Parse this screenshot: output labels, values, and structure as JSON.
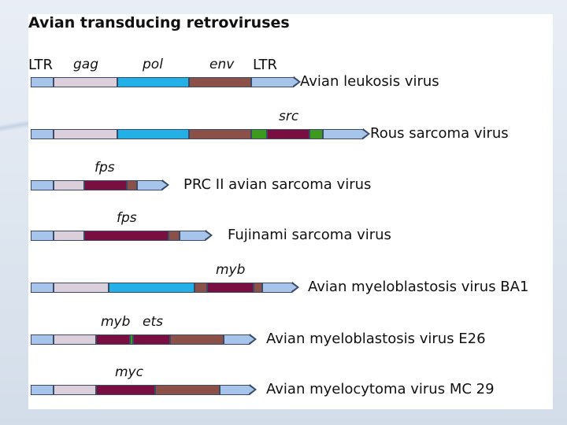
{
  "title": "Avian transducing retroviruses",
  "header_labels": {
    "ltr_left": "LTR",
    "gag": "gag",
    "pol": "pol",
    "env": "env",
    "ltr_right": "LTR"
  },
  "colors": {
    "ltr": "#a7c4ea",
    "gag": "#dccfdc",
    "pol": "#22b0e6",
    "env": "#8b5148",
    "onc": "#790e40",
    "green": "#3d9a1f",
    "outline": "#3b4a66"
  },
  "constructs": [
    {
      "name": "Avian leukosis virus",
      "gene_labels": []
    },
    {
      "name": "Rous sarcoma virus",
      "gene_labels": [
        "src"
      ]
    },
    {
      "name": "PRC II avian sarcoma virus",
      "gene_labels": [
        "fps"
      ]
    },
    {
      "name": "Fujinami sarcoma virus",
      "gene_labels": [
        "fps"
      ]
    },
    {
      "name": "Avian myeloblastosis virus BA1",
      "gene_labels": [
        "myb"
      ]
    },
    {
      "name": "Avian myeloblastosis virus E26",
      "gene_labels": [
        "myb",
        "ets"
      ]
    },
    {
      "name": "Avian myelocytoma virus MC 29",
      "gene_labels": [
        "myc"
      ]
    }
  ]
}
